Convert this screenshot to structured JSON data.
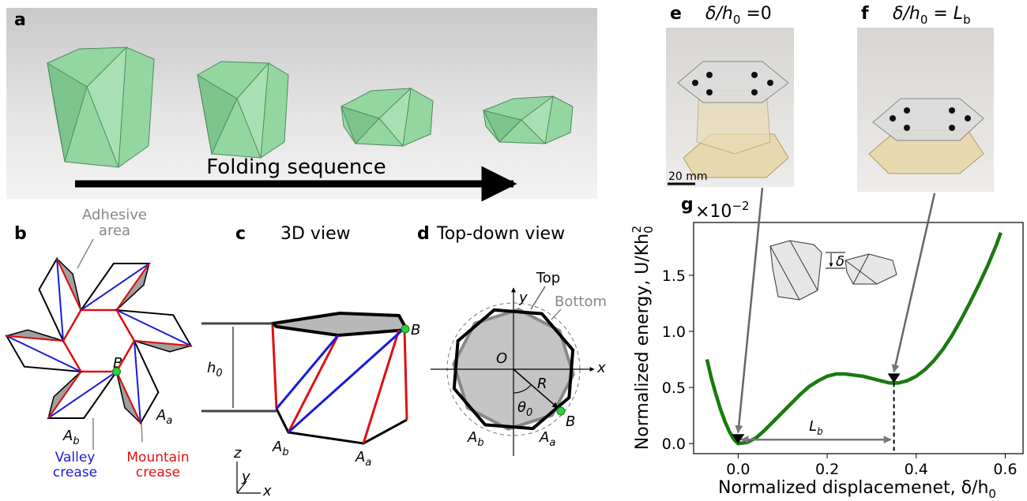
{
  "panel_a": {
    "label": "a",
    "caption": "Folding sequence"
  },
  "panel_b": {
    "label": "b",
    "adhesive": [
      "Adhesive",
      "area"
    ],
    "point_b": "B",
    "a_b": {
      "base": "A",
      "sub": "b"
    },
    "a_a": {
      "base": "A",
      "sub": "a"
    },
    "valley": [
      "Valley",
      "crease"
    ],
    "mountain": [
      "Mountain",
      "crease"
    ]
  },
  "panel_c": {
    "label": "c",
    "title": "3D view",
    "h0": {
      "base": "h",
      "sub": "0"
    },
    "point_b": "B",
    "a_b": {
      "base": "A",
      "sub": "b"
    },
    "a_a": {
      "base": "A",
      "sub": "a"
    },
    "axes": [
      "z",
      "y",
      "x"
    ]
  },
  "panel_d": {
    "label": "d",
    "title": "Top-down view",
    "top": "Top",
    "bottom": "Bottom",
    "y": "y",
    "x": "x",
    "o": "O",
    "r": "R",
    "theta": {
      "base": "θ",
      "sub": "0"
    },
    "point_b": "B",
    "a_b": {
      "base": "A",
      "sub": "b"
    },
    "a_a": {
      "base": "A",
      "sub": "a"
    }
  },
  "panel_e": {
    "label": "e",
    "title": {
      "pre": "δ/h",
      "sub": "0",
      "post": " =0"
    },
    "scale": "20 mm"
  },
  "panel_f": {
    "label": "f",
    "title": {
      "pre": "δ/h",
      "sub": "0",
      "post": " = L",
      "sub2": "b"
    }
  },
  "chart_data": {
    "type": "line",
    "panel_label": "g",
    "xlabel": {
      "text": "Normalized displacemenet, δ/h",
      "sub": "0"
    },
    "ylabel": {
      "text": "Normalized energy, U/Kh",
      "sub": "0",
      "sup": "2"
    },
    "offset": {
      "base": "×10",
      "sup": "−2"
    },
    "inset_delta": "δ",
    "lb_label": {
      "base": "L",
      "sub": "b"
    },
    "color": "#1a7a0f",
    "x": [
      -0.07,
      -0.06,
      -0.05,
      -0.04,
      -0.03,
      -0.02,
      -0.01,
      0,
      0.02,
      0.04,
      0.06,
      0.08,
      0.1,
      0.12,
      0.14,
      0.16,
      0.18,
      0.2,
      0.22,
      0.24,
      0.26,
      0.28,
      0.3,
      0.32,
      0.34,
      0.35,
      0.36,
      0.38,
      0.4,
      0.42,
      0.44,
      0.46,
      0.48,
      0.5,
      0.52,
      0.54,
      0.56,
      0.58,
      0.59
    ],
    "values": [
      0.75,
      0.58,
      0.44,
      0.31,
      0.2,
      0.11,
      0.04,
      0,
      0.01,
      0.05,
      0.12,
      0.2,
      0.28,
      0.36,
      0.44,
      0.51,
      0.56,
      0.6,
      0.62,
      0.62,
      0.61,
      0.6,
      0.58,
      0.56,
      0.54,
      0.54,
      0.54,
      0.56,
      0.6,
      0.66,
      0.74,
      0.84,
      0.96,
      1.1,
      1.25,
      1.41,
      1.58,
      1.77,
      1.88
    ],
    "minima": {
      "x": [
        0,
        0.35
      ],
      "values": [
        0,
        0.54
      ]
    },
    "xlim": [
      -0.1,
      0.64
    ],
    "ylim": [
      -0.09,
      1.97
    ],
    "xticks": [
      {
        "value": 0,
        "label": "0.0"
      },
      0.2,
      0.4,
      0.6
    ],
    "yticks": [
      {
        "value": 0,
        "label": "0.0"
      },
      0.5,
      {
        "value": 1,
        "label": "1.0"
      },
      1.5
    ]
  }
}
